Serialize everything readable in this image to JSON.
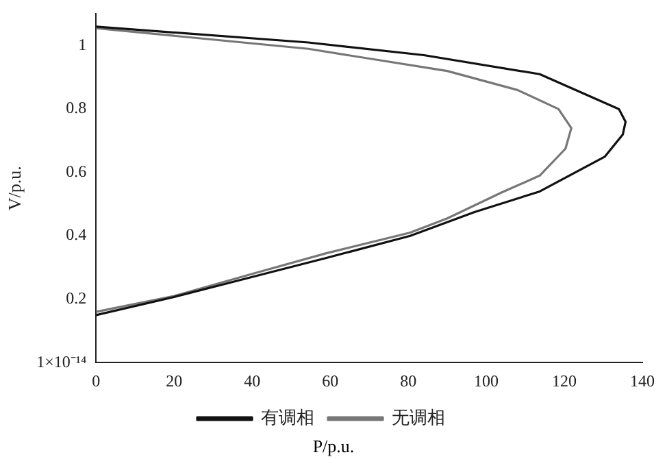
{
  "chart_data": {
    "type": "line",
    "xlabel": "P/p.u.",
    "ylabel": "V/p.u.",
    "xlim": [
      0,
      140
    ],
    "xticks": [
      0,
      20,
      40,
      60,
      80,
      100,
      120,
      140
    ],
    "ylim": [
      0,
      1.1
    ],
    "yticks": [
      {
        "value": 0,
        "label": "1×10⁻¹⁴"
      },
      0.2,
      0.4,
      0.6,
      0.8,
      1
    ],
    "grid": false,
    "legend": "bottom",
    "marker": "none",
    "line_style": "solid",
    "series": [
      {
        "name": "有调相",
        "color": "#111111",
        "x": [
          0,
          54.4,
          84,
          113.7,
          134,
          135.7,
          135,
          130.4,
          113.7,
          97,
          80.5,
          59,
          40,
          20,
          0
        ],
        "values": [
          1.06,
          1.01,
          0.97,
          0.91,
          0.8,
          0.76,
          0.72,
          0.65,
          0.54,
          0.475,
          0.4,
          0.33,
          0.27,
          0.207,
          0.15
        ]
      },
      {
        "name": "无调相",
        "color": "#777777",
        "x": [
          0,
          54.4,
          90,
          108,
          118.5,
          121.8,
          120.3,
          113.7,
          104,
          90,
          80.5,
          59,
          40,
          20,
          0
        ],
        "values": [
          1.055,
          0.99,
          0.92,
          0.86,
          0.8,
          0.74,
          0.675,
          0.59,
          0.537,
          0.455,
          0.41,
          0.345,
          0.28,
          0.21,
          0.16
        ]
      }
    ]
  }
}
